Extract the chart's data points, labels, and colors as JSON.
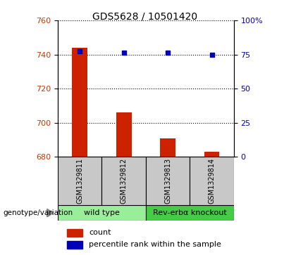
{
  "title": "GDS5628 / 10501420",
  "samples": [
    "GSM1329811",
    "GSM1329812",
    "GSM1329813",
    "GSM1329814"
  ],
  "bar_values": [
    744,
    706,
    691,
    683
  ],
  "bar_bottom": 680,
  "dot_values": [
    742,
    741,
    741,
    740
  ],
  "bar_color": "#cc2200",
  "dot_color": "#0000bb",
  "ylim": [
    680,
    760
  ],
  "yticks_left": [
    680,
    700,
    720,
    740,
    760
  ],
  "yticks_right": [
    0,
    25,
    50,
    75,
    100
  ],
  "ylabel_left_color": "#cc3300",
  "ylabel_right_color": "#0000bb",
  "groups": [
    {
      "label": "wild type",
      "indices": [
        0,
        1
      ],
      "color": "#99ee99"
    },
    {
      "label": "Rev-erbα knockout",
      "indices": [
        2,
        3
      ],
      "color": "#44cc44"
    }
  ],
  "genotype_label": "genotype/variation",
  "legend_bar_label": "count",
  "legend_dot_label": "percentile rank within the sample",
  "title_fontsize": 10,
  "tick_fontsize": 8,
  "sample_fontsize": 7,
  "group_fontsize": 8,
  "legend_fontsize": 8
}
